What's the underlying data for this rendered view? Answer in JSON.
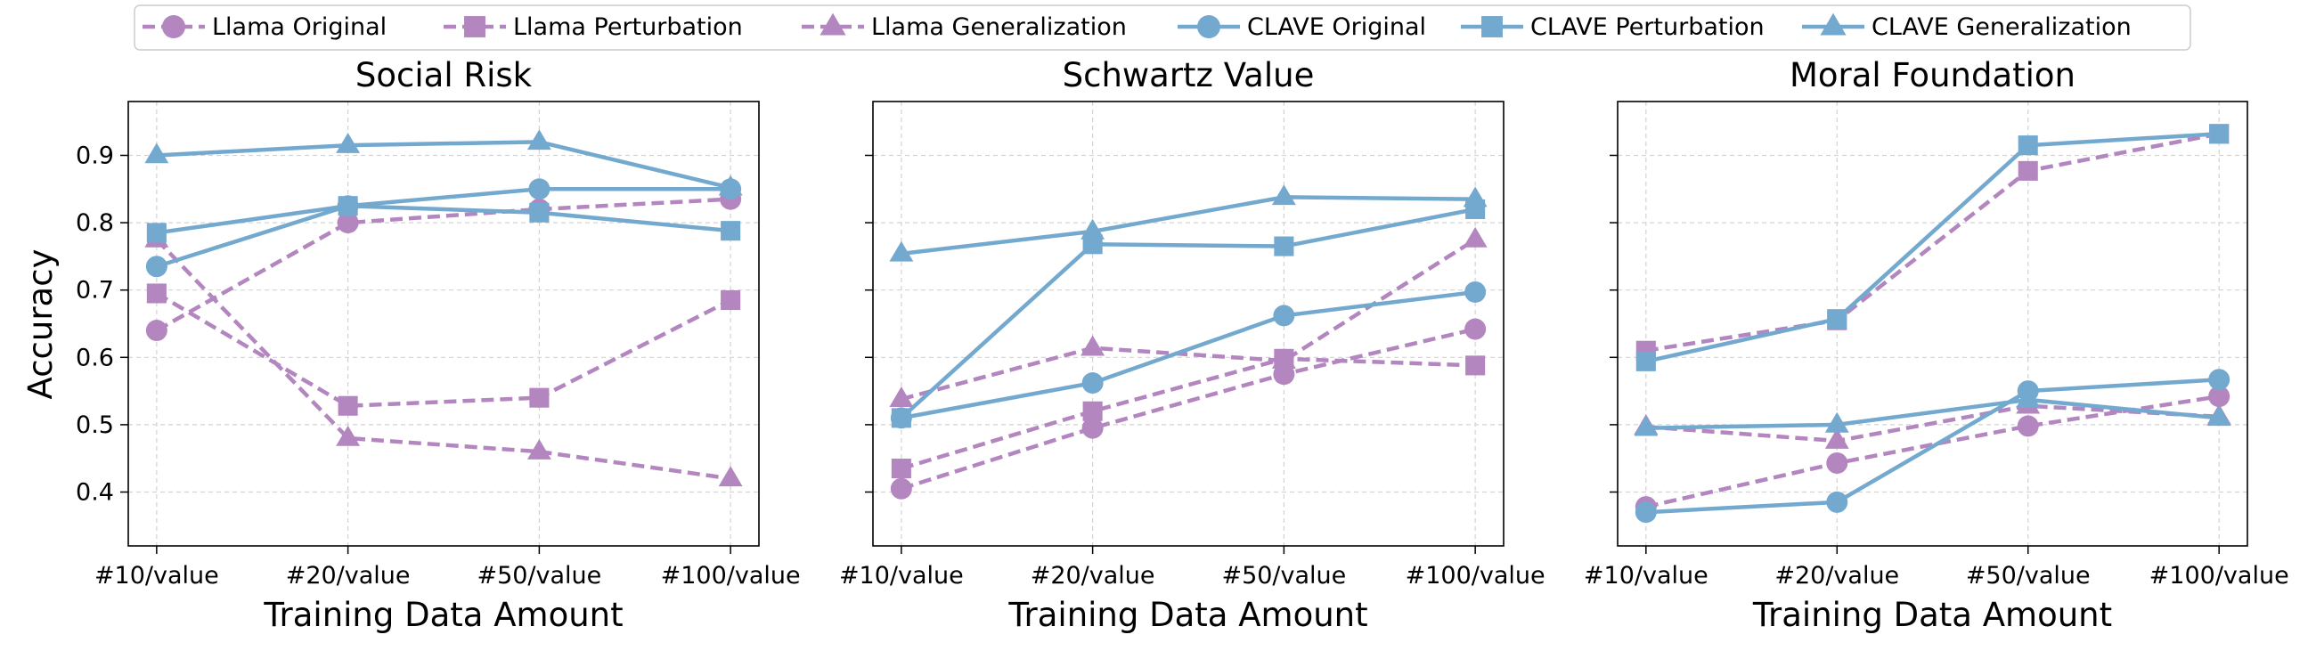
{
  "legend": {
    "placement": "top-center",
    "items": [
      {
        "label": "Llama Original",
        "color": "#b386c0",
        "marker": "circle",
        "dash": true
      },
      {
        "label": "Llama Perturbation",
        "color": "#b386c0",
        "marker": "square",
        "dash": true
      },
      {
        "label": "Llama Generalization",
        "color": "#b386c0",
        "marker": "triangle",
        "dash": true
      },
      {
        "label": "CLAVE Original",
        "color": "#74a9cf",
        "marker": "circle",
        "dash": false
      },
      {
        "label": "CLAVE Perturbation",
        "color": "#74a9cf",
        "marker": "square",
        "dash": false
      },
      {
        "label": "CLAVE Generalization",
        "color": "#74a9cf",
        "marker": "triangle",
        "dash": false
      }
    ]
  },
  "chart_data": [
    {
      "type": "line",
      "title": "Social Risk",
      "xlabel": "Training Data Amount",
      "ylabel": "Accuracy",
      "categories": [
        "#10/value",
        "#20/value",
        "#50/value",
        "#100/value"
      ],
      "ylim": [
        0.32,
        0.98
      ],
      "yticks": [
        "0.4",
        "0.5",
        "0.6",
        "0.7",
        "0.8",
        "0.9"
      ],
      "grid": true,
      "series": [
        {
          "name": "Llama Original",
          "values": [
            0.64,
            0.8,
            0.82,
            0.835
          ]
        },
        {
          "name": "Llama Perturbation",
          "values": [
            0.695,
            0.528,
            0.54,
            0.685
          ]
        },
        {
          "name": "Llama Generalization",
          "values": [
            0.775,
            0.48,
            0.46,
            0.42
          ]
        },
        {
          "name": "CLAVE Original",
          "values": [
            0.735,
            0.825,
            0.85,
            0.85
          ]
        },
        {
          "name": "CLAVE Perturbation",
          "values": [
            0.785,
            0.825,
            0.815,
            0.788
          ]
        },
        {
          "name": "CLAVE Generalization",
          "values": [
            0.9,
            0.915,
            0.92,
            0.852
          ]
        }
      ]
    },
    {
      "type": "line",
      "title": "Schwartz Value",
      "xlabel": "Training Data Amount",
      "ylabel": "",
      "categories": [
        "#10/value",
        "#20/value",
        "#50/value",
        "#100/value"
      ],
      "ylim": [
        0.32,
        0.98
      ],
      "yticks": [],
      "grid": true,
      "series": [
        {
          "name": "Llama Original",
          "values": [
            0.405,
            0.495,
            0.575,
            0.642
          ]
        },
        {
          "name": "Llama Perturbation",
          "values": [
            0.435,
            0.52,
            0.598,
            0.588
          ]
        },
        {
          "name": "Llama Generalization",
          "values": [
            0.538,
            0.614,
            0.595,
            0.775
          ]
        },
        {
          "name": "CLAVE Original",
          "values": [
            0.51,
            0.562,
            0.662,
            0.697
          ]
        },
        {
          "name": "CLAVE Perturbation",
          "values": [
            0.51,
            0.768,
            0.765,
            0.82
          ]
        },
        {
          "name": "CLAVE Generalization",
          "values": [
            0.754,
            0.787,
            0.838,
            0.835
          ]
        }
      ]
    },
    {
      "type": "line",
      "title": "Moral Foundation",
      "xlabel": "Training Data Amount",
      "ylabel": "",
      "categories": [
        "#10/value",
        "#20/value",
        "#50/value",
        "#100/value"
      ],
      "ylim": [
        0.32,
        0.98
      ],
      "yticks": [],
      "grid": true,
      "series": [
        {
          "name": "Llama Original",
          "values": [
            0.378,
            0.443,
            0.498,
            0.542
          ]
        },
        {
          "name": "Llama Perturbation",
          "values": [
            0.61,
            0.655,
            0.877,
            0.932
          ]
        },
        {
          "name": "Llama Generalization",
          "values": [
            0.497,
            0.476,
            0.528,
            0.512
          ]
        },
        {
          "name": "CLAVE Original",
          "values": [
            0.37,
            0.385,
            0.55,
            0.567
          ]
        },
        {
          "name": "CLAVE Perturbation",
          "values": [
            0.594,
            0.657,
            0.915,
            0.932
          ]
        },
        {
          "name": "CLAVE Generalization",
          "values": [
            0.495,
            0.5,
            0.537,
            0.51
          ]
        }
      ]
    }
  ]
}
